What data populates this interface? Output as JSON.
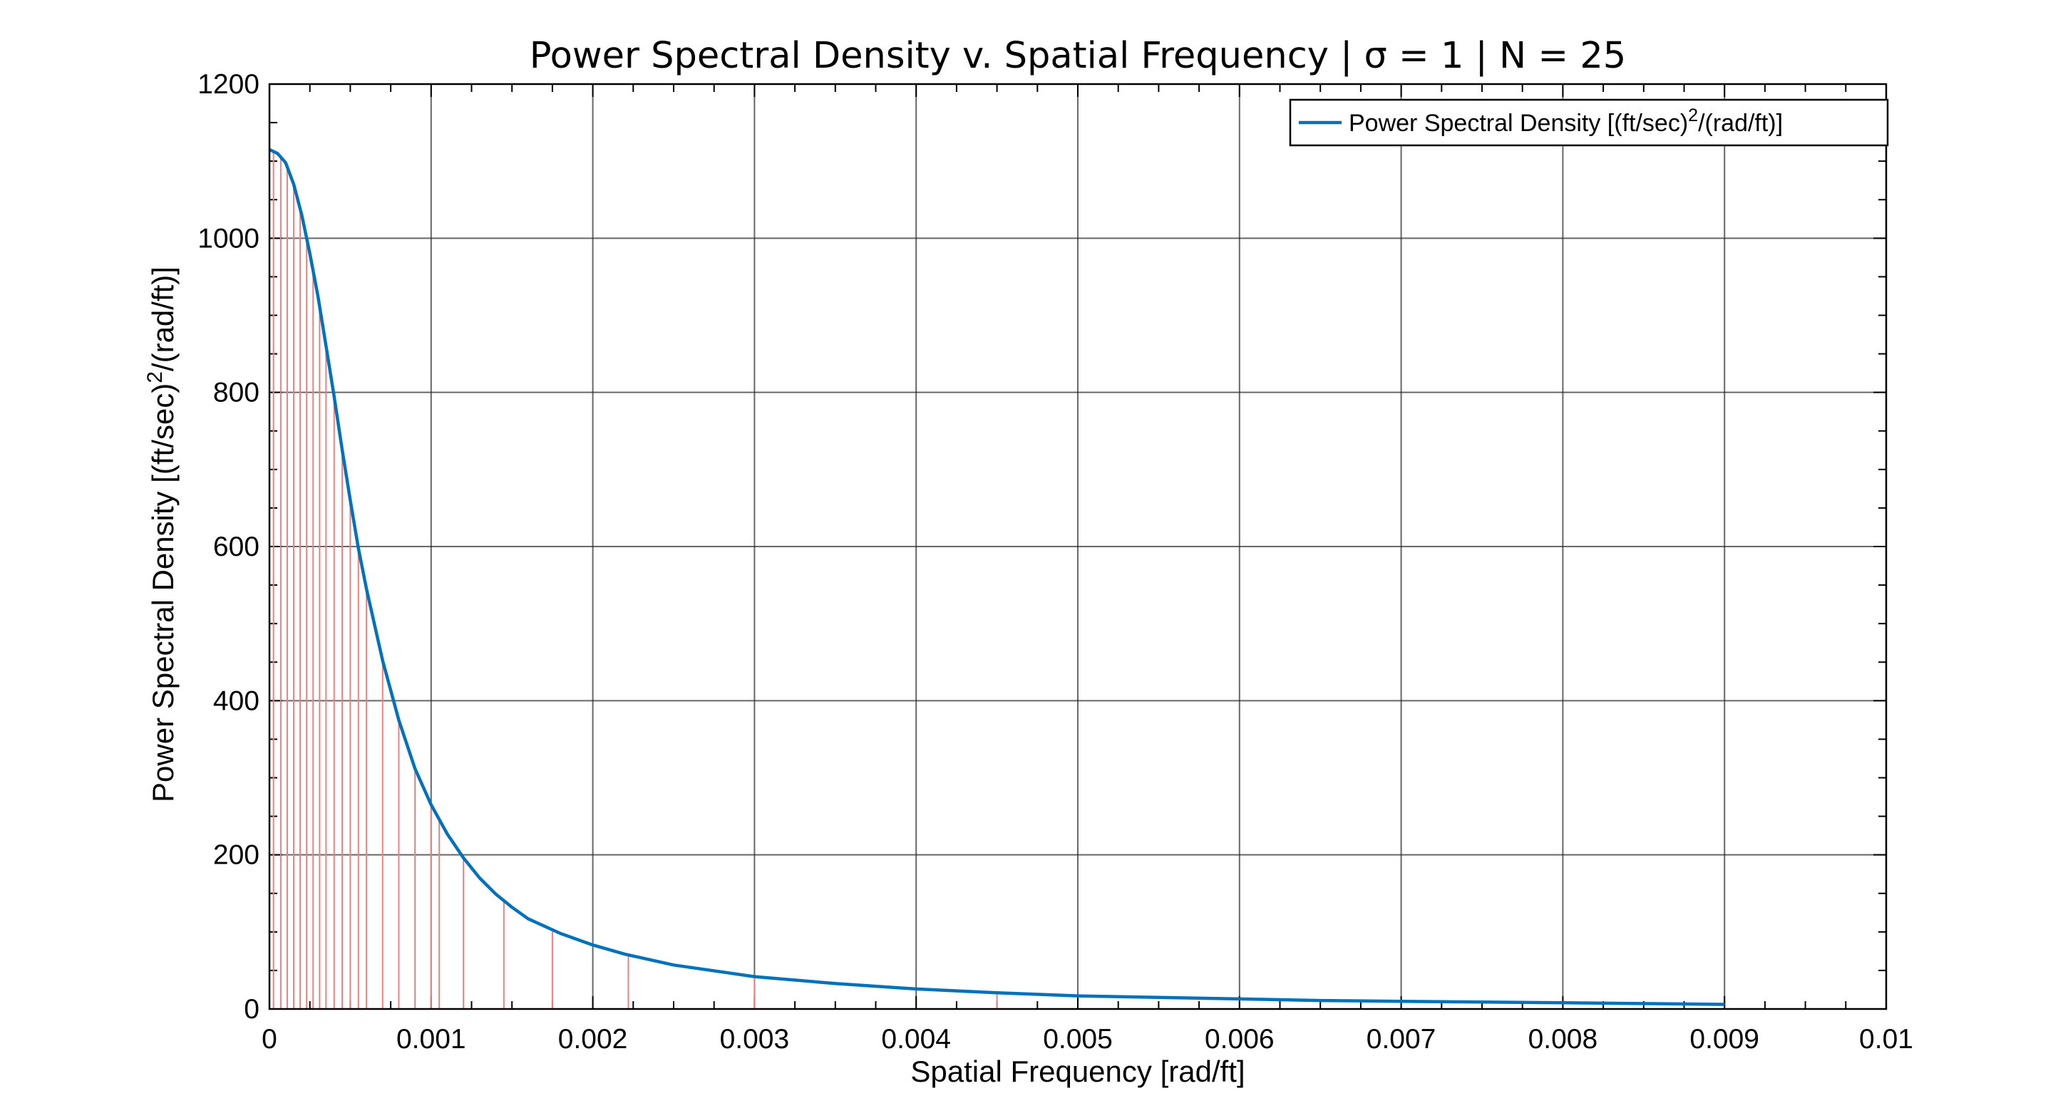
{
  "chart_data": {
    "type": "line",
    "title": "Power Spectral Density v. Spatial Frequency | σ = 1 | N = 25",
    "xlabel": "Spatial Frequency [rad/ft]",
    "ylabel": {
      "before": "Power Spectral Density  [(ft/sec)",
      "sup": "2",
      "after": "/(rad/ft)]"
    },
    "xlim": [
      0,
      0.01
    ],
    "ylim": [
      0,
      1200
    ],
    "x_ticks": [
      "0",
      "0.001",
      "0.002",
      "0.003",
      "0.004",
      "0.005",
      "0.006",
      "0.007",
      "0.008",
      "0.009",
      "0.01"
    ],
    "y_ticks": [
      "0",
      "200",
      "400",
      "600",
      "800",
      "1000",
      "1200"
    ],
    "grid": true,
    "legend": {
      "placement": "top-right",
      "entries": [
        {
          "before": "Power Spectral Density  [(ft/sec)",
          "sup": "2",
          "after": "/(rad/ft)]"
        }
      ]
    },
    "series": [
      {
        "name": "Power Spectral Density",
        "color": "#0072BD",
        "x": [
          0,
          5e-05,
          0.0001,
          0.00015,
          0.0002,
          0.00025,
          0.0003,
          0.00035,
          0.0004,
          0.00045,
          0.0005,
          0.00055,
          0.0006,
          0.0007,
          0.0008,
          0.0009,
          0.001,
          0.0011,
          0.0012,
          0.0013,
          0.0014,
          0.0015,
          0.0016,
          0.0018,
          0.002,
          0.0022,
          0.0025,
          0.003,
          0.0035,
          0.004,
          0.0045,
          0.005,
          0.0055,
          0.006,
          0.0065,
          0.007,
          0.0075,
          0.008,
          0.0085,
          0.009
        ],
        "y": [
          1115,
          1110,
          1098,
          1070,
          1030,
          980,
          925,
          860,
          795,
          725,
          660,
          598,
          545,
          452,
          375,
          312,
          265,
          227,
          196,
          170,
          149,
          132,
          117,
          98,
          83,
          71,
          57,
          42,
          33,
          26,
          21,
          17,
          15,
          13,
          11,
          10,
          9,
          8,
          7,
          6
        ]
      }
    ],
    "stems": {
      "color": "#F08080",
      "x": [
        2.5e-05,
        7e-05,
        0.00011,
        0.00015,
        0.00019,
        0.00023,
        0.00027,
        0.00031,
        0.00035,
        0.0004,
        0.00045,
        0.0005,
        0.00055,
        0.0006,
        0.0007,
        0.0008,
        0.0009,
        0.001,
        0.00105,
        0.0012,
        0.00145,
        0.00175,
        0.00222,
        0.003,
        0.0045
      ]
    }
  }
}
